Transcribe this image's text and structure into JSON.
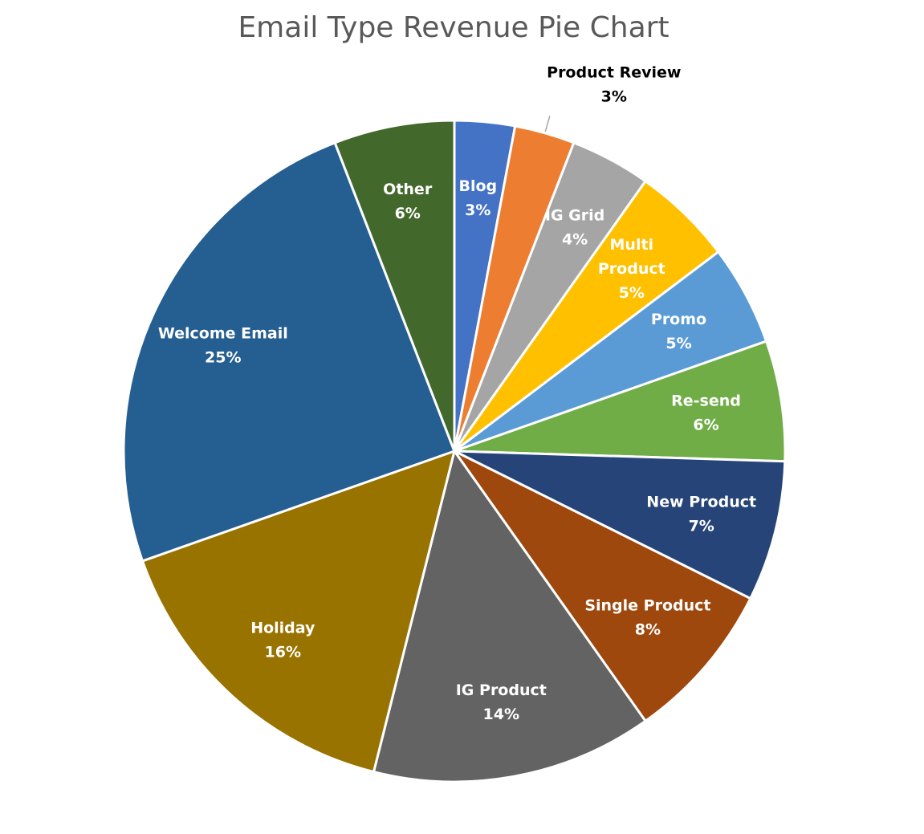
{
  "chart_data": {
    "type": "pie",
    "title": "Email Type Revenue Pie Chart",
    "start_angle_deg": 0,
    "direction": "clockwise",
    "slices": [
      {
        "label": "Blog",
        "value": 3,
        "display": "3%",
        "color": "#4472C4",
        "label_color": "#ffffff"
      },
      {
        "label": "Product Review",
        "value": 3,
        "display": "3%",
        "color": "#ED7D31",
        "label_color": "#000000",
        "label_outside": true
      },
      {
        "label": "IG Grid",
        "value": 4,
        "display": "4%",
        "color": "#A5A5A5",
        "label_color": "#ffffff"
      },
      {
        "label": "Multi Product",
        "value": 5,
        "display": "5%",
        "color": "#FFC000",
        "label_color": "#ffffff"
      },
      {
        "label": "Promo",
        "value": 5,
        "display": "5%",
        "color": "#5B9BD5",
        "label_color": "#ffffff"
      },
      {
        "label": "Re-send",
        "value": 6,
        "display": "6%",
        "color": "#70AD47",
        "label_color": "#ffffff"
      },
      {
        "label": "New Product",
        "value": 7,
        "display": "7%",
        "color": "#264478",
        "label_color": "#ffffff"
      },
      {
        "label": "Single Product",
        "value": 8,
        "display": "8%",
        "color": "#9E480E",
        "label_color": "#ffffff"
      },
      {
        "label": "IG Product",
        "value": 14,
        "display": "14%",
        "color": "#636363",
        "label_color": "#ffffff"
      },
      {
        "label": "Holiday",
        "value": 16,
        "display": "16%",
        "color": "#997300",
        "label_color": "#ffffff"
      },
      {
        "label": "Welcome Email",
        "value": 25,
        "display": "25%",
        "color": "#255E91",
        "label_color": "#ffffff"
      },
      {
        "label": "Other",
        "value": 6,
        "display": "6%",
        "color": "#43682B",
        "label_color": "#ffffff"
      }
    ]
  }
}
